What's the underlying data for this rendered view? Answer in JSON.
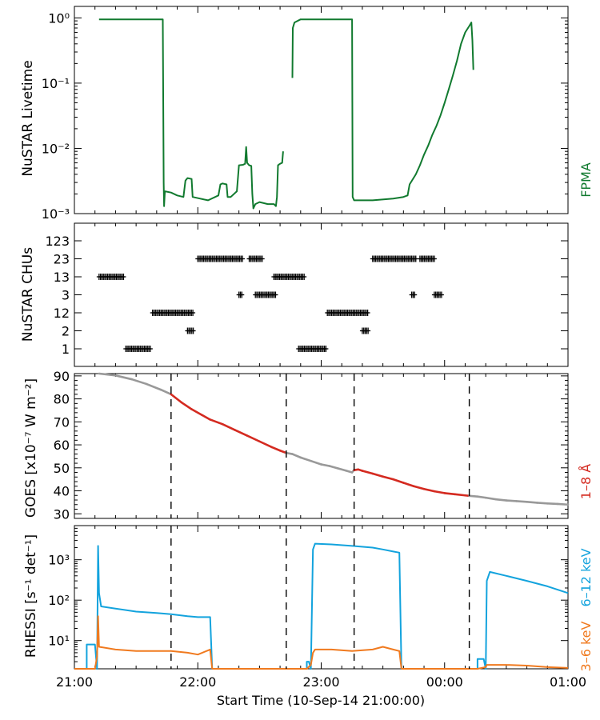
{
  "figure": {
    "xlabel": "Start Time (10-Sep-14 21:00:00)",
    "x_tick_labels": [
      "21:00",
      "22:00",
      "23:00",
      "00:00",
      "01:00"
    ],
    "xrange_minutes": [
      0,
      240
    ],
    "vlines_minutes": [
      47,
      103,
      136,
      192
    ]
  },
  "chart_data": [
    {
      "type": "line",
      "name": "nustar-livetime",
      "ylabel": "NuSTAR Livetime",
      "yscale": "log",
      "ylim": [
        0.001,
        1.5
      ],
      "y_tick_labels": [
        "10⁰",
        "10⁻¹",
        "10⁻²",
        "10⁻³"
      ],
      "y_tick_values": [
        1,
        0.1,
        0.01,
        0.001
      ],
      "legend": "FPMA",
      "color": "#117a2f",
      "series": [
        {
          "name": "FPMA",
          "segments": [
            [
              [
                12,
                0.95
              ],
              [
                21,
                0.95
              ],
              [
                30,
                0.95
              ],
              [
                40,
                0.95
              ],
              [
                43,
                0.95
              ],
              [
                43.4,
                0.003
              ],
              [
                43.6,
                0.0013
              ],
              [
                44,
                0.0022
              ],
              [
                47,
                0.0021
              ],
              [
                50,
                0.0019
              ],
              [
                53,
                0.0018
              ],
              [
                54,
                0.0032
              ],
              [
                55,
                0.0035
              ],
              [
                57,
                0.0034
              ],
              [
                57.5,
                0.0018
              ],
              [
                61,
                0.0017
              ],
              [
                65,
                0.0016
              ],
              [
                70,
                0.0019
              ],
              [
                71,
                0.0028
              ],
              [
                72,
                0.0029
              ],
              [
                74,
                0.0028
              ],
              [
                74.5,
                0.0018
              ],
              [
                76,
                0.0018
              ],
              [
                79,
                0.0022
              ],
              [
                80,
                0.0055
              ],
              [
                82,
                0.0056
              ],
              [
                83,
                0.0058
              ],
              [
                83.5,
                0.0105
              ],
              [
                84,
                0.006
              ],
              [
                85,
                0.0055
              ],
              [
                86,
                0.0054
              ],
              [
                86.5,
                0.002
              ],
              [
                87,
                0.0012
              ],
              [
                88,
                0.0014
              ],
              [
                90,
                0.0015
              ],
              [
                94,
                0.0014
              ],
              [
                97,
                0.0014
              ],
              [
                98,
                0.0013
              ],
              [
                98.5,
                0.0018
              ],
              [
                99,
                0.0055
              ],
              [
                100,
                0.0058
              ],
              [
                101,
                0.006
              ],
              [
                101.5,
                0.009
              ]
            ],
            [
              [
                106,
                0.12
              ],
              [
                106.2,
                0.7
              ],
              [
                107,
                0.85
              ],
              [
                110,
                0.95
              ],
              [
                120,
                0.95
              ],
              [
                130,
                0.95
              ],
              [
                135,
                0.95
              ],
              [
                135.3,
                0.0018
              ],
              [
                136,
                0.0016
              ],
              [
                145,
                0.0016
              ],
              [
                155,
                0.0017
              ],
              [
                160,
                0.0018
              ],
              [
                162,
                0.0019
              ],
              [
                163,
                0.0028
              ],
              [
                166,
                0.004
              ],
              [
                168,
                0.0055
              ],
              [
                170,
                0.008
              ],
              [
                172,
                0.011
              ],
              [
                174,
                0.016
              ],
              [
                176,
                0.022
              ],
              [
                178,
                0.032
              ],
              [
                180,
                0.05
              ],
              [
                182,
                0.08
              ],
              [
                184,
                0.13
              ],
              [
                186,
                0.22
              ],
              [
                188,
                0.4
              ],
              [
                190,
                0.6
              ],
              [
                192,
                0.75
              ],
              [
                193,
                0.85
              ],
              [
                193.5,
                0.45
              ],
              [
                194,
                0.16
              ]
            ]
          ]
        }
      ]
    },
    {
      "type": "scatter",
      "name": "nustar-chus",
      "ylabel": "NuSTAR CHUs",
      "y_categories": [
        "1",
        "2",
        "12",
        "3",
        "13",
        "23",
        "123"
      ],
      "marker": "+",
      "color": "#000000",
      "runs": [
        {
          "category": "13",
          "x": [
            12,
            24
          ]
        },
        {
          "category": "1",
          "x": [
            25,
            37
          ]
        },
        {
          "category": "12",
          "x": [
            38,
            58
          ]
        },
        {
          "category": "2",
          "x": [
            55,
            58
          ]
        },
        {
          "category": "23",
          "x": [
            60,
            82
          ]
        },
        {
          "category": "23",
          "x": [
            85,
            92
          ]
        },
        {
          "category": "3",
          "x": [
            80,
            82
          ]
        },
        {
          "category": "3",
          "x": [
            88,
            98
          ]
        },
        {
          "category": "13",
          "x": [
            97,
            112
          ]
        },
        {
          "category": "1",
          "x": [
            109,
            123
          ]
        },
        {
          "category": "12",
          "x": [
            123,
            143
          ]
        },
        {
          "category": "2",
          "x": [
            140,
            143
          ]
        },
        {
          "category": "23",
          "x": [
            145,
            166
          ]
        },
        {
          "category": "23",
          "x": [
            168,
            175
          ]
        },
        {
          "category": "3",
          "x": [
            164,
            166
          ]
        },
        {
          "category": "3",
          "x": [
            175,
            179
          ]
        }
      ]
    },
    {
      "type": "line",
      "name": "goes",
      "ylabel": "GOES [x10⁻⁷ W m⁻²]",
      "ylim": [
        28,
        91
      ],
      "y_tick_values": [
        30,
        40,
        50,
        60,
        70,
        80,
        90
      ],
      "y_tick_labels": [
        "30",
        "40",
        "50",
        "60",
        "70",
        "80",
        "90"
      ],
      "legend": "1–8 Å",
      "colors": {
        "inactive": "#999999",
        "active": "#d42a20"
      },
      "series": [
        {
          "name": "1–8 Å",
          "points": [
            [
              12,
              91
            ],
            [
              20,
              90.2
            ],
            [
              28,
              88.5
            ],
            [
              35,
              86.5
            ],
            [
              42,
              84
            ],
            [
              47,
              82
            ],
            [
              52,
              78.5
            ],
            [
              57,
              75.5
            ],
            [
              62,
              73
            ],
            [
              66,
              71
            ],
            [
              72,
              69
            ],
            [
              78,
              66.5
            ],
            [
              84,
              64
            ],
            [
              90,
              61.5
            ],
            [
              96,
              59
            ],
            [
              100,
              57.5
            ],
            [
              103,
              56.5
            ],
            [
              106,
              56
            ],
            [
              110,
              54.5
            ],
            [
              115,
              53
            ],
            [
              120,
              51.5
            ],
            [
              124,
              50.8
            ],
            [
              128,
              49.8
            ],
            [
              132,
              48.8
            ],
            [
              135,
              48
            ],
            [
              136,
              49
            ],
            [
              138,
              49.3
            ],
            [
              140,
              48.7
            ],
            [
              145,
              47.5
            ],
            [
              150,
              46.2
            ],
            [
              155,
              45
            ],
            [
              160,
              43.5
            ],
            [
              165,
              42
            ],
            [
              170,
              40.8
            ],
            [
              175,
              39.8
            ],
            [
              180,
              39
            ],
            [
              185,
              38.5
            ],
            [
              190,
              38
            ],
            [
              192,
              37.8
            ],
            [
              196,
              37.5
            ],
            [
              200,
              37
            ],
            [
              205,
              36.3
            ],
            [
              210,
              35.8
            ],
            [
              215,
              35.5
            ],
            [
              220,
              35.2
            ],
            [
              225,
              34.8
            ],
            [
              230,
              34.5
            ],
            [
              235,
              34.3
            ],
            [
              240,
              34
            ]
          ]
        }
      ]
    },
    {
      "type": "line",
      "name": "rhessi",
      "ylabel": "RHESSI [s⁻¹ det⁻¹]",
      "yscale": "log",
      "ylim": [
        2,
        7000
      ],
      "y_tick_values": [
        1000,
        100,
        10
      ],
      "y_tick_labels": [
        "10³",
        "10²",
        "10¹"
      ],
      "series": [
        {
          "name": "6–12 keV",
          "color": "#13a3dd",
          "segments": [
            [
              [
                0,
                2
              ],
              [
                6,
                2
              ],
              [
                6,
                8
              ],
              [
                10,
                8
              ],
              [
                11,
                2
              ],
              [
                11.5,
                2200
              ],
              [
                12,
                150
              ],
              [
                13,
                70
              ],
              [
                20,
                62
              ],
              [
                30,
                52
              ],
              [
                40,
                48
              ],
              [
                47,
                45
              ],
              [
                55,
                40
              ],
              [
                60,
                38
              ],
              [
                66,
                38
              ],
              [
                67,
                2
              ]
            ],
            [
              [
                67,
                2
              ],
              [
                113,
                2
              ],
              [
                113,
                3
              ],
              [
                114,
                3
              ],
              [
                115,
                2
              ],
              [
                116,
                1800
              ],
              [
                117,
                2500
              ],
              [
                125,
                2400
              ],
              [
                135,
                2200
              ],
              [
                145,
                2000
              ],
              [
                150,
                1800
              ],
              [
                155,
                1600
              ],
              [
                158,
                1500
              ],
              [
                159,
                2
              ]
            ],
            [
              [
                159,
                2
              ],
              [
                196,
                2
              ],
              [
                196,
                3.5
              ],
              [
                199,
                3.5
              ],
              [
                200,
                2
              ],
              [
                200.5,
                300
              ],
              [
                202,
                500
              ],
              [
                210,
                400
              ],
              [
                220,
                300
              ],
              [
                230,
                220
              ],
              [
                240,
                150
              ]
            ]
          ]
        },
        {
          "name": "3–6 keV",
          "color": "#f07a1f",
          "segments": [
            [
              [
                0,
                2
              ],
              [
                10,
                2
              ],
              [
                11,
                4
              ],
              [
                11.5,
                40
              ],
              [
                12,
                7
              ],
              [
                20,
                6
              ],
              [
                30,
                5.5
              ],
              [
                40,
                5.5
              ],
              [
                47,
                5.5
              ],
              [
                55,
                5
              ],
              [
                60,
                4.5
              ],
              [
                66,
                6
              ],
              [
                67,
                2
              ]
            ],
            [
              [
                67,
                2
              ],
              [
                113,
                2
              ],
              [
                115,
                2.5
              ],
              [
                116,
                5
              ],
              [
                117,
                6
              ],
              [
                125,
                6
              ],
              [
                135,
                5.5
              ],
              [
                145,
                6
              ],
              [
                150,
                7
              ],
              [
                155,
                6
              ],
              [
                158,
                5.5
              ],
              [
                159,
                2
              ]
            ],
            [
              [
                159,
                2
              ],
              [
                196,
                2
              ],
              [
                200,
                2.2
              ],
              [
                200.5,
                2.5
              ],
              [
                210,
                2.5
              ],
              [
                220,
                2.4
              ],
              [
                230,
                2.2
              ],
              [
                240,
                2.1
              ]
            ]
          ]
        }
      ]
    }
  ]
}
